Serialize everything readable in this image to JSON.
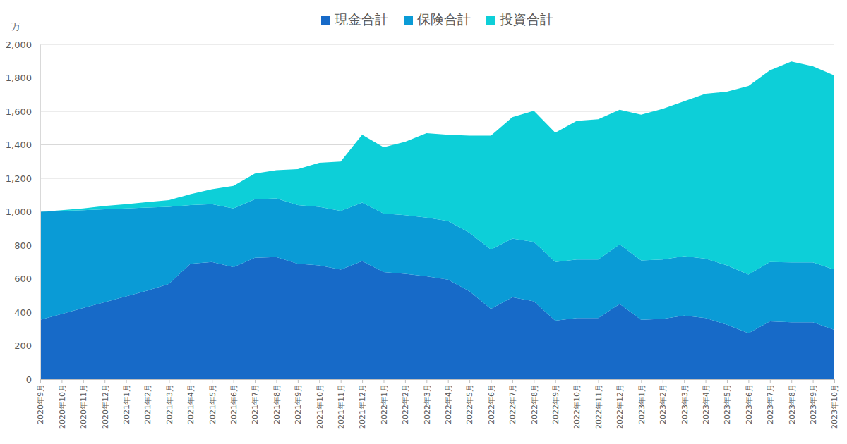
{
  "chart_data": {
    "type": "area",
    "stacked": true,
    "grid": true,
    "legend": "top",
    "y_label": "万",
    "categories": [
      "2020年9月",
      "2020年10月",
      "2020年11月",
      "2020年12月",
      "2021年1月",
      "2021年2月",
      "2021年3月",
      "2021年4月",
      "2021年5月",
      "2021年6月",
      "2021年7月",
      "2021年8月",
      "2021年9月",
      "2021年10月",
      "2021年11月",
      "2021年12月",
      "2022年1月",
      "2022年2月",
      "2022年3月",
      "2022年4月",
      "2022年5月",
      "2022年6月",
      "2022年7月",
      "2022年8月",
      "2022年9月",
      "2022年10月",
      "2022年11月",
      "2022年12月",
      "2023年1月",
      "2023年2月",
      "2023年3月",
      "2023年4月",
      "2023年5月",
      "2023年6月",
      "2023年7月",
      "2023年8月",
      "2023年9月",
      "2023年10月"
    ],
    "series": [
      {
        "name": "現金合計",
        "color": "#176ac8",
        "values": [
          355,
          390,
          425,
          460,
          495,
          530,
          570,
          690,
          700,
          670,
          725,
          730,
          690,
          680,
          655,
          705,
          640,
          630,
          615,
          595,
          525,
          420,
          490,
          465,
          350,
          365,
          365,
          450,
          355,
          360,
          380,
          365,
          325,
          275,
          345,
          340,
          340,
          295
        ]
      },
      {
        "name": "保険合計",
        "color": "#0a9bd6",
        "values": [
          645,
          615,
          585,
          555,
          525,
          495,
          460,
          350,
          345,
          350,
          350,
          350,
          350,
          350,
          350,
          350,
          350,
          350,
          350,
          350,
          350,
          355,
          350,
          355,
          350,
          350,
          350,
          355,
          355,
          355,
          355,
          355,
          355,
          350,
          355,
          358,
          358,
          360
        ]
      },
      {
        "name": "投資合計",
        "color": "#0dcfd8",
        "values": [
          0,
          5,
          10,
          20,
          25,
          33,
          40,
          65,
          90,
          135,
          153,
          168,
          215,
          263,
          295,
          405,
          395,
          438,
          505,
          515,
          580,
          680,
          725,
          783,
          773,
          828,
          838,
          805,
          870,
          900,
          925,
          985,
          1038,
          1127,
          1145,
          1200,
          1172,
          1160
        ]
      }
    ],
    "ylim": [
      0,
      2000
    ],
    "yticks": [
      0,
      200,
      400,
      600,
      800,
      {
        "value": 1000,
        "label": "1,000"
      },
      {
        "value": 1200,
        "label": "1,200"
      },
      {
        "value": 1400,
        "label": "1,400"
      },
      {
        "value": 1600,
        "label": "1,600"
      },
      {
        "value": 1800,
        "label": "1,800"
      },
      {
        "value": 2000,
        "label": "2,000"
      }
    ]
  }
}
